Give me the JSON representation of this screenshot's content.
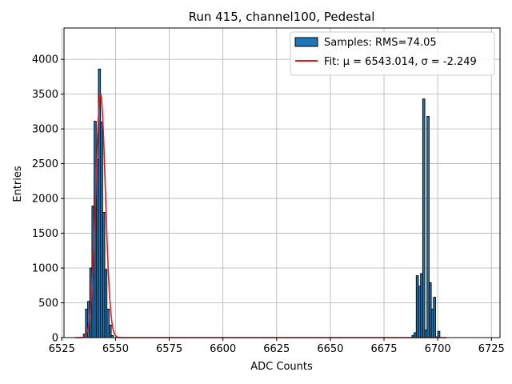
{
  "chart_data": {
    "type": "bar",
    "title": "Run 415, channel100, Pedestal",
    "xlabel": "ADC Counts",
    "ylabel": "Entries",
    "xlim": [
      6526,
      6729
    ],
    "ylim": [
      0,
      4450
    ],
    "xticks": [
      6525,
      6550,
      6575,
      6600,
      6625,
      6650,
      6675,
      6700,
      6725
    ],
    "yticks": [
      0,
      500,
      1000,
      1500,
      2000,
      2500,
      3000,
      3500,
      4000
    ],
    "grid": true,
    "legend_position": "top-right",
    "colors": {
      "bar_fill": "#1f77b4",
      "bar_edge": "#000000",
      "fit_line": "#e31a1c",
      "grid": "#b0b0b0"
    },
    "series": [
      {
        "name": "Samples: RMS=74.05",
        "kind": "histogram",
        "bin_width": 1,
        "bins": [
          {
            "x": 6535,
            "y": 50
          },
          {
            "x": 6536,
            "y": 410
          },
          {
            "x": 6537,
            "y": 520
          },
          {
            "x": 6538,
            "y": 1000
          },
          {
            "x": 6539,
            "y": 1890
          },
          {
            "x": 6540,
            "y": 3110
          },
          {
            "x": 6541,
            "y": 2560
          },
          {
            "x": 6542,
            "y": 3860
          },
          {
            "x": 6543,
            "y": 3100
          },
          {
            "x": 6544,
            "y": 1800
          },
          {
            "x": 6545,
            "y": 980
          },
          {
            "x": 6546,
            "y": 410
          },
          {
            "x": 6547,
            "y": 180
          },
          {
            "x": 6548,
            "y": 30
          },
          {
            "x": 6688,
            "y": 30
          },
          {
            "x": 6689,
            "y": 70
          },
          {
            "x": 6690,
            "y": 890
          },
          {
            "x": 6691,
            "y": 740
          },
          {
            "x": 6692,
            "y": 920
          },
          {
            "x": 6693,
            "y": 3430
          },
          {
            "x": 6694,
            "y": 110
          },
          {
            "x": 6695,
            "y": 3180
          },
          {
            "x": 6696,
            "y": 790
          },
          {
            "x": 6697,
            "y": 410
          },
          {
            "x": 6698,
            "y": 580
          },
          {
            "x": 6699,
            "y": 10
          },
          {
            "x": 6700,
            "y": 90
          }
        ]
      },
      {
        "name": "Fit: μ = 6543.014, σ = -2.249",
        "kind": "gaussian",
        "mu": 6543.014,
        "sigma": -2.249,
        "amplitude": 3500,
        "x_range": [
          6531,
          6704
        ]
      }
    ]
  }
}
